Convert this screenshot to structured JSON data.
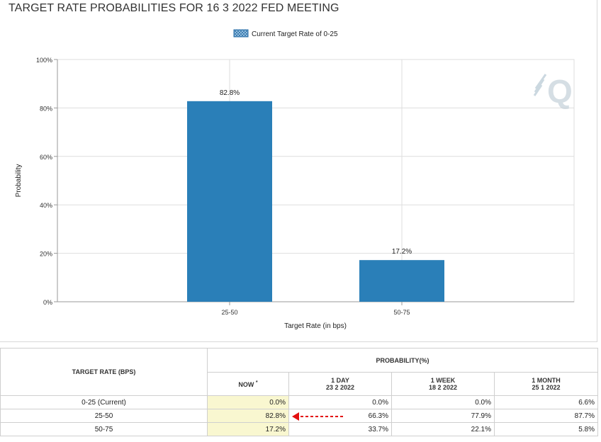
{
  "page": {
    "title": "TARGET RATE PROBABILITIES FOR 16 3 2022 FED MEETING"
  },
  "chart_data": {
    "type": "bar",
    "title": "TARGET RATE PROBABILITIES FOR 16 3 2022 FED MEETING",
    "legend": "Current Target Rate of 0-25",
    "legend_placement": "top-center",
    "xlabel": "Target Rate (in bps)",
    "ylabel": "Probability",
    "categories": [
      "25-50",
      "50-75"
    ],
    "values": [
      82.8,
      17.2
    ],
    "data_labels": [
      "82.8%",
      "17.2%"
    ],
    "ylim": [
      0,
      100
    ],
    "yticks": [
      0,
      20,
      40,
      60,
      80,
      100
    ],
    "ytick_labels": [
      "0%",
      "20%",
      "40%",
      "60%",
      "80%",
      "100%"
    ],
    "grid": true,
    "bar_color": "#2a7fb8"
  },
  "watermark": "Q",
  "table": {
    "col_header": "TARGET RATE (BPS)",
    "group_header": "PROBABILITY(%)",
    "columns": [
      {
        "label": "NOW",
        "marker": "*",
        "date": ""
      },
      {
        "label": "1 DAY",
        "date": "23 2 2022"
      },
      {
        "label": "1 WEEK",
        "date": "18 2 2022"
      },
      {
        "label": "1 MONTH",
        "date": "25 1 2022"
      }
    ],
    "rows": [
      {
        "rate": "0-25 (Current)",
        "now": "0.0%",
        "day1": "0.0%",
        "week1": "0.0%",
        "month1": "6.6%"
      },
      {
        "rate": "25-50",
        "now": "82.8%",
        "day1": "66.3%",
        "week1": "77.9%",
        "month1": "87.7%"
      },
      {
        "rate": "50-75",
        "now": "17.2%",
        "day1": "33.7%",
        "week1": "22.1%",
        "month1": "5.8%"
      }
    ],
    "highlight_color": "#f9f7d0",
    "arrow_color": "#e31010"
  }
}
